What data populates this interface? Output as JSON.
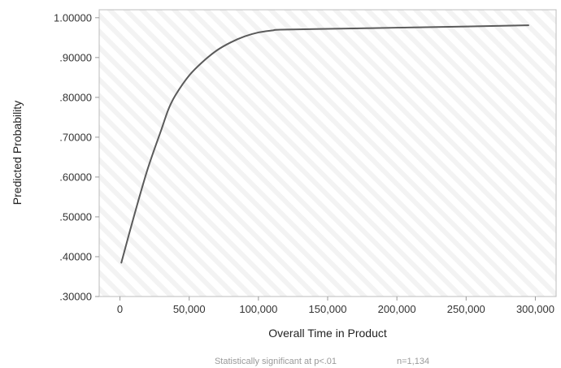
{
  "chart_data": {
    "type": "line",
    "title": "",
    "xlabel": "Overall Time in Product",
    "ylabel": "Predicted Probability",
    "xlim": [
      -15000,
      315000
    ],
    "ylim": [
      0.3,
      1.02
    ],
    "x_ticks": [
      0,
      50000,
      100000,
      150000,
      200000,
      250000,
      300000
    ],
    "x_tick_labels": [
      "0",
      "50,000",
      "100,000",
      "150,000",
      "200,000",
      "250,000",
      "300,000"
    ],
    "y_ticks": [
      0.3,
      0.4,
      0.5,
      0.6,
      0.7,
      0.8,
      0.9,
      1.0
    ],
    "y_tick_labels": [
      ".30000",
      ".40000",
      ".50000",
      ".60000",
      ".70000",
      ".80000",
      ".90000",
      "1.00000"
    ],
    "grid": false,
    "background": "diagonal-striped",
    "series": [
      {
        "x": [
          1000,
          10000,
          20000,
          30000,
          35000,
          40000,
          50000,
          60000,
          70000,
          80000,
          90000,
          100000,
          110000,
          116000,
          150000,
          200000,
          250000,
          295000
        ],
        "y": [
          0.385,
          0.5,
          0.62,
          0.72,
          0.77,
          0.805,
          0.855,
          0.89,
          0.918,
          0.938,
          0.953,
          0.963,
          0.968,
          0.97,
          0.972,
          0.975,
          0.978,
          0.981
        ],
        "color": "#5a5a5a"
      }
    ],
    "annotations": [
      "Statistically significant at p<.01",
      "n=1,134"
    ]
  }
}
